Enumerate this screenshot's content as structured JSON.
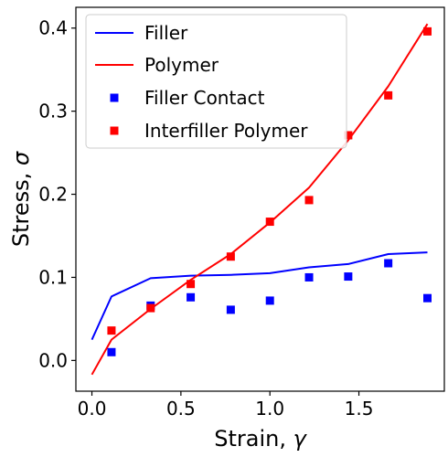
{
  "chart_data": {
    "type": "line",
    "title": "",
    "xlabel": "Strain, ",
    "xlabel_symbol": "γ",
    "ylabel": "Stress, ",
    "ylabel_symbol": "σ",
    "xlim": [
      -0.09,
      1.98
    ],
    "ylim": [
      -0.037,
      0.425
    ],
    "xticks": [
      0.0,
      0.5,
      1.0,
      1.5
    ],
    "xtick_labels": [
      "0.0",
      "0.5",
      "1.0",
      "1.5"
    ],
    "yticks": [
      0.0,
      0.1,
      0.2,
      0.3,
      0.4
    ],
    "ytick_labels": [
      "0.0",
      "0.1",
      "0.2",
      "0.3",
      "0.4"
    ],
    "grid": false,
    "legend_position": "top-left",
    "series": [
      {
        "name": "Filler",
        "kind": "line",
        "color": "#0000ff",
        "x": [
          0.0,
          0.11,
          0.33,
          0.555,
          0.78,
          1.0,
          1.22,
          1.44,
          1.665,
          1.885
        ],
        "y": [
          0.025,
          0.077,
          0.099,
          0.102,
          0.103,
          0.105,
          0.112,
          0.116,
          0.128,
          0.13
        ]
      },
      {
        "name": "Polymer",
        "kind": "line",
        "color": "#ff0000",
        "x": [
          0.0,
          0.11,
          0.33,
          0.555,
          0.78,
          1.0,
          1.22,
          1.44,
          1.665,
          1.885
        ],
        "y": [
          -0.017,
          0.025,
          0.062,
          0.097,
          0.128,
          0.166,
          0.208,
          0.265,
          0.33,
          0.405
        ]
      },
      {
        "name": "Filler Contact",
        "kind": "scatter",
        "color": "#0000ff",
        "x": [
          0.11,
          0.33,
          0.555,
          0.78,
          1.0,
          1.22,
          1.44,
          1.665,
          1.885
        ],
        "y": [
          0.01,
          0.066,
          0.076,
          0.061,
          0.072,
          0.1,
          0.101,
          0.117,
          0.075
        ]
      },
      {
        "name": "Interfiller Polymer",
        "kind": "scatter",
        "color": "#ff0000",
        "x": [
          0.11,
          0.33,
          0.555,
          0.78,
          1.0,
          1.22,
          1.44,
          1.665,
          1.885
        ],
        "y": [
          0.036,
          0.063,
          0.092,
          0.125,
          0.167,
          0.193,
          0.271,
          0.319,
          0.396
        ]
      }
    ]
  }
}
